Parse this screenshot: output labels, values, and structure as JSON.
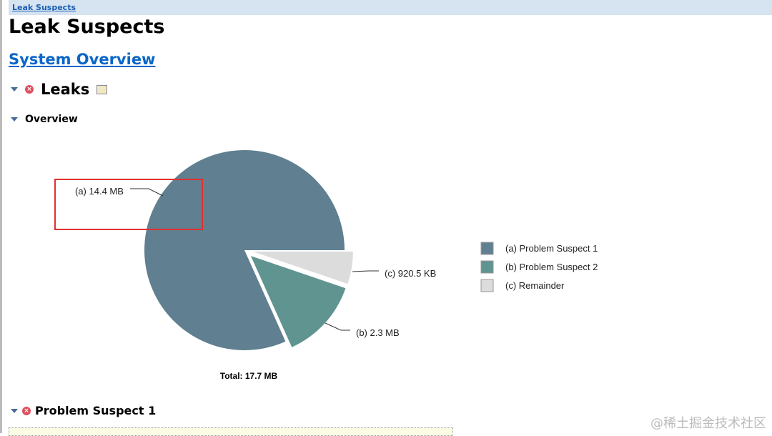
{
  "breadcrumb": "Leak Suspects",
  "page_title": "Leak Suspects",
  "system_overview_link": "System Overview",
  "leaks_heading": "Leaks",
  "overview_heading": "Overview",
  "problem_suspect_heading": "Problem Suspect 1",
  "watermark": "@稀土掘金技术社区",
  "chart_data": {
    "type": "pie",
    "slices": [
      {
        "key": "(a)",
        "name": "Problem Suspect 1",
        "value_mb": 14.4,
        "label": "(a)  14.4 MB",
        "legend": "(a)  Problem Suspect 1",
        "color": "#607f90"
      },
      {
        "key": "(b)",
        "name": "Problem Suspect 2",
        "value_mb": 2.3,
        "label": "(b)  2.3 MB",
        "legend": "(b)  Problem Suspect 2",
        "color": "#5f9490"
      },
      {
        "key": "(c)",
        "name": "Remainder",
        "value_mb": 0.9205,
        "label": "(c)  920.5 KB",
        "legend": "(c)  Remainder",
        "color": "#dcdcdc"
      }
    ],
    "total": "Total: 17.7 MB",
    "legend_placement": "right"
  }
}
